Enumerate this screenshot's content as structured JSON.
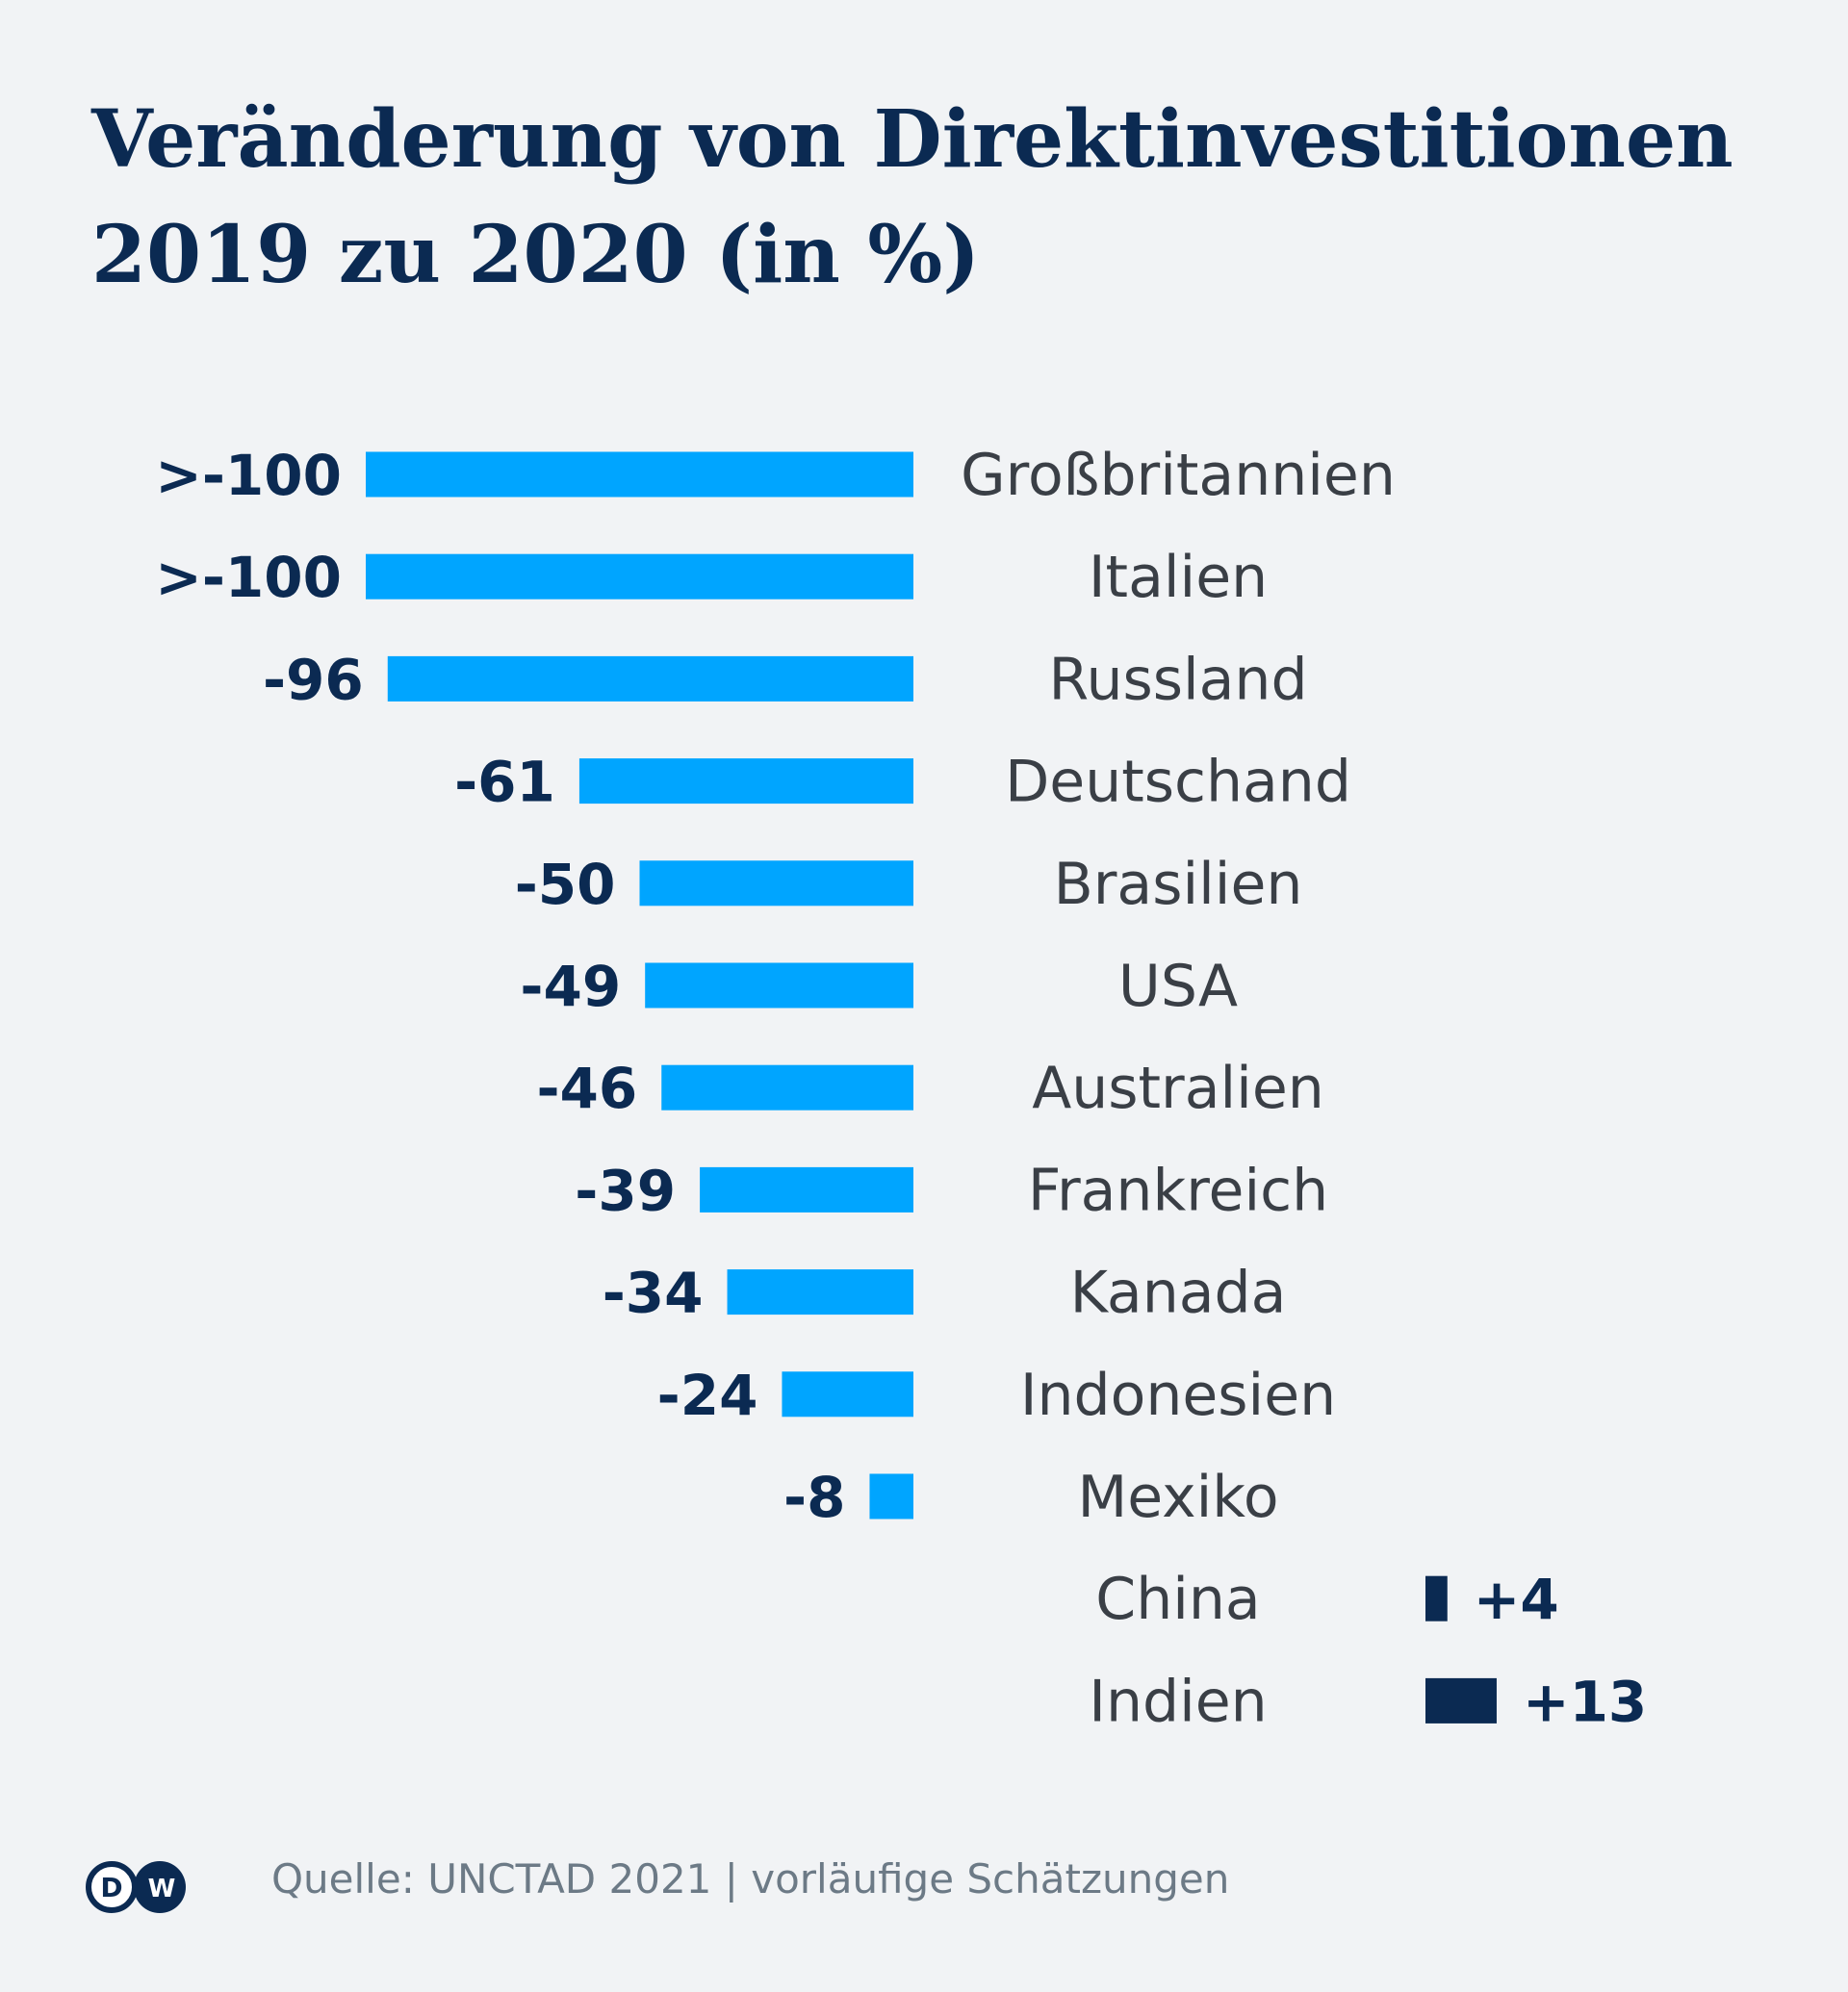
{
  "title_line1": "Veränderung von Direktinvestitionen",
  "title_line2": "2019 zu 2020 (in %)",
  "source": "Quelle: UNCTAD 2021 | vorläufige Schätzungen",
  "logo_text": "DW",
  "colors": {
    "negative": "#00a5ff",
    "positive": "#0b2a52",
    "background": "#f1f3f5",
    "text": "#0b2a52"
  },
  "chart_data": {
    "type": "bar",
    "orientation": "horizontal",
    "categories": [
      "Großbritannien",
      "Italien",
      "Russland",
      "Deutschand",
      "Brasilien",
      "USA",
      "Australien",
      "Frankreich",
      "Kanada",
      "Indonesien",
      "Mexiko",
      "China",
      "Indien"
    ],
    "values": [
      -100,
      -100,
      -96,
      -61,
      -50,
      -49,
      -46,
      -39,
      -34,
      -24,
      -8,
      4,
      13
    ],
    "labels": [
      ">-100",
      ">-100",
      "-96",
      "-61",
      "-50",
      "-49",
      "-46",
      "-39",
      "-34",
      "-24",
      "-8",
      "+4",
      "+13"
    ],
    "title": "Veränderung von Direktinvestitionen 2019 zu 2020 (in %)",
    "xlabel": "",
    "ylabel": "",
    "grid": false
  }
}
